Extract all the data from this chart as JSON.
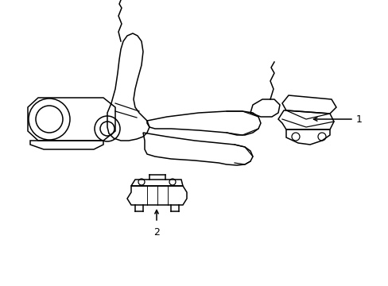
{
  "background_color": "#ffffff",
  "line_color": "#000000",
  "line_width": 1.1,
  "fig_width": 4.89,
  "fig_height": 3.6,
  "dpi": 100,
  "label_1": "1",
  "label_2": "2",
  "label_fontsize": 9
}
